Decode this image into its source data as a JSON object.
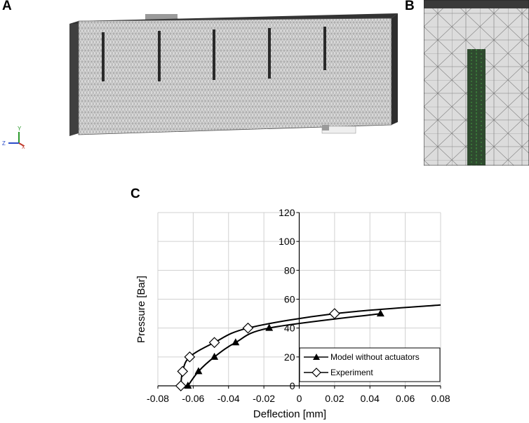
{
  "figure": {
    "panel_labels": [
      "A",
      "B",
      "C"
    ],
    "axis_triad": {
      "y": "Y",
      "z": "Z",
      "x": "X"
    }
  },
  "chart_data": {
    "type": "line",
    "xlabel": "Deflection [mm]",
    "ylabel": "Pressure [Bar]",
    "xlim": [
      -0.08,
      0.08
    ],
    "ylim": [
      0,
      120
    ],
    "x_ticks": [
      -0.08,
      -0.06,
      -0.04,
      -0.02,
      0,
      0.02,
      0.04,
      0.06,
      0.08
    ],
    "x_tick_labels": [
      "-0.08",
      "-0.06",
      "-0.04",
      "-0.02",
      "0",
      "0.02",
      "0.04",
      "0.06",
      "0.08"
    ],
    "y_ticks": [
      0,
      20,
      40,
      60,
      80,
      100,
      120
    ],
    "y_tick_labels": [
      "0",
      "20",
      "40",
      "60",
      "80",
      "100",
      "120"
    ],
    "grid": true,
    "legend_position": "bottom-right",
    "series": [
      {
        "name": "Model without actuators",
        "marker": "filled-triangle",
        "color": "#000000",
        "points": [
          [
            -0.063,
            0
          ],
          [
            -0.057,
            10
          ],
          [
            -0.048,
            20
          ],
          [
            -0.036,
            30
          ],
          [
            -0.017,
            40
          ],
          [
            0.046,
            50
          ]
        ],
        "curve": [
          [
            -0.063,
            0
          ],
          [
            -0.057,
            10
          ],
          [
            -0.048,
            20
          ],
          [
            -0.036,
            30
          ],
          [
            -0.017,
            40
          ],
          [
            0.046,
            50
          ]
        ]
      },
      {
        "name": "Experiment",
        "marker": "open-diamond",
        "color": "#000000",
        "points": [
          [
            -0.067,
            0
          ],
          [
            -0.066,
            10
          ],
          [
            -0.062,
            20
          ],
          [
            -0.048,
            30
          ],
          [
            -0.029,
            40
          ],
          [
            0.02,
            50
          ]
        ],
        "curve": [
          [
            -0.067,
            0
          ],
          [
            -0.066,
            10
          ],
          [
            -0.062,
            20
          ],
          [
            -0.048,
            30
          ],
          [
            -0.029,
            40
          ],
          [
            0.02,
            50
          ],
          [
            0.08,
            56
          ]
        ]
      }
    ]
  }
}
